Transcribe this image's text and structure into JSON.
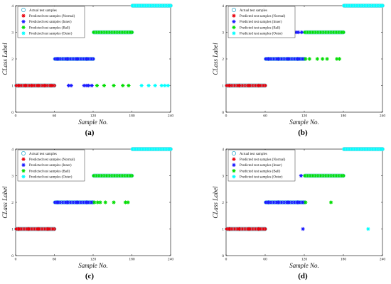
{
  "colors": {
    "actual": "#00e5ee",
    "normal": "#e8000b",
    "inner": "#1a1aff",
    "ball": "#00dd00",
    "outer": "#00ffff",
    "axis": "#000000"
  },
  "legend": [
    {
      "label": "Actual test samples",
      "marker": "circle",
      "color": "#00e5ee"
    },
    {
      "label": "Predicted test samples (Normal)",
      "marker": "star",
      "color": "#e8000b"
    },
    {
      "label": "Predicted test samples (Inner)",
      "marker": "star",
      "color": "#1a1aff"
    },
    {
      "label": "Predicted test samples (Ball)",
      "marker": "star",
      "color": "#00dd00"
    },
    {
      "label": "Predicted test samples (Outer)",
      "marker": "star",
      "color": "#00ffff"
    }
  ],
  "chart_data": [
    {
      "type": "scatter",
      "caption": "(a)",
      "xlabel": "Sample No.",
      "ylabel": "CLass Label",
      "xlim": [
        0,
        240
      ],
      "ylim": [
        0,
        4
      ],
      "xticks": [
        0,
        60,
        120,
        180,
        240
      ],
      "yticks": [
        0,
        1,
        2,
        3,
        4
      ],
      "actual_series": [
        {
          "class": 1,
          "x_range": [
            1,
            60
          ],
          "color": "#e8000b"
        },
        {
          "class": 2,
          "x_range": [
            61,
            120
          ],
          "color": "#1a1aff"
        },
        {
          "class": 3,
          "x_range": [
            121,
            180
          ],
          "color": "#00dd00"
        },
        {
          "class": 4,
          "x_range": [
            181,
            240
          ],
          "color": "#00ffff"
        }
      ],
      "predicted_series": [
        {
          "name": "Normal",
          "color": "#e8000b",
          "points": [
            [
              5,
              1
            ],
            [
              15,
              1
            ],
            [
              25,
              1
            ],
            [
              35,
              1
            ],
            [
              45,
              1
            ],
            [
              55,
              1
            ]
          ]
        },
        {
          "name": "Inner",
          "color": "#1a1aff",
          "points": [
            [
              65,
              2
            ],
            [
              80,
              2
            ],
            [
              95,
              2
            ],
            [
              110,
              2
            ],
            [
              82,
              1
            ],
            [
              86,
              1
            ],
            [
              106,
              1
            ],
            [
              110,
              1
            ],
            [
              113,
              1
            ],
            [
              118,
              1
            ]
          ]
        },
        {
          "name": "Ball",
          "color": "#00dd00",
          "points": [
            [
              126,
              1
            ],
            [
              137,
              1
            ],
            [
              152,
              1
            ],
            [
              166,
              1
            ],
            [
              175,
              1
            ]
          ]
        },
        {
          "name": "Outer",
          "color": "#00ffff",
          "points": [
            [
              195,
              1
            ],
            [
              206,
              1
            ],
            [
              216,
              1
            ],
            [
              226,
              1
            ],
            [
              231,
              1
            ],
            [
              236,
              1
            ]
          ]
        }
      ]
    },
    {
      "type": "scatter",
      "caption": "(b)",
      "xlabel": "Sample No.",
      "ylabel": "CLass Label",
      "xlim": [
        0,
        240
      ],
      "ylim": [
        0,
        4
      ],
      "xticks": [
        0,
        60,
        120,
        180,
        240
      ],
      "yticks": [
        0,
        1,
        2,
        3,
        4
      ],
      "actual_series": [
        {
          "class": 1,
          "x_range": [
            1,
            60
          ],
          "color": "#e8000b"
        },
        {
          "class": 2,
          "x_range": [
            61,
            120
          ],
          "color": "#1a1aff"
        },
        {
          "class": 3,
          "x_range": [
            121,
            180
          ],
          "color": "#00dd00"
        },
        {
          "class": 4,
          "x_range": [
            181,
            240
          ],
          "color": "#00ffff"
        }
      ],
      "predicted_series": [
        {
          "name": "Normal",
          "color": "#e8000b",
          "points": [
            [
              5,
              1
            ],
            [
              20,
              1
            ],
            [
              35,
              1
            ],
            [
              50,
              1
            ]
          ]
        },
        {
          "name": "Inner",
          "color": "#1a1aff",
          "points": [
            [
              68,
              3
            ],
            [
              74,
              3
            ],
            [
              79,
              3
            ],
            [
              83,
              3
            ],
            [
              86,
              3
            ],
            [
              92,
              3
            ],
            [
              99,
              3
            ],
            [
              104,
              3
            ],
            [
              108,
              3
            ],
            [
              111,
              3
            ],
            [
              116,
              3
            ],
            [
              65,
              2
            ],
            [
              80,
              2
            ],
            [
              95,
              2
            ],
            [
              110,
              2
            ]
          ]
        },
        {
          "name": "Ball",
          "color": "#00dd00",
          "points": [
            [
              122,
              2
            ],
            [
              128,
              2
            ],
            [
              140,
              2
            ],
            [
              148,
              2
            ],
            [
              155,
              2
            ],
            [
              170,
              2
            ],
            [
              174,
              2
            ]
          ]
        },
        {
          "name": "Outer",
          "color": "#00ffff",
          "points": []
        }
      ]
    },
    {
      "type": "scatter",
      "caption": "(c)",
      "xlabel": "Sample No.",
      "ylabel": "CLass Label",
      "xlim": [
        0,
        240
      ],
      "ylim": [
        0,
        4
      ],
      "xticks": [
        0,
        60,
        120,
        180,
        240
      ],
      "yticks": [
        0,
        1,
        2,
        3,
        4
      ],
      "actual_series": [
        {
          "class": 1,
          "x_range": [
            1,
            60
          ],
          "color": "#e8000b"
        },
        {
          "class": 2,
          "x_range": [
            61,
            120
          ],
          "color": "#1a1aff"
        },
        {
          "class": 3,
          "x_range": [
            121,
            180
          ],
          "color": "#00dd00"
        },
        {
          "class": 4,
          "x_range": [
            181,
            240
          ],
          "color": "#00ffff"
        }
      ],
      "predicted_series": [
        {
          "name": "Normal",
          "color": "#e8000b",
          "points": [
            [
              5,
              1
            ],
            [
              20,
              1
            ],
            [
              35,
              1
            ],
            [
              50,
              1
            ]
          ]
        },
        {
          "name": "Inner",
          "color": "#1a1aff",
          "points": [
            [
              66,
              3
            ],
            [
              70,
              3
            ],
            [
              65,
              2
            ],
            [
              80,
              2
            ],
            [
              95,
              2
            ],
            [
              110,
              2
            ]
          ]
        },
        {
          "name": "Ball",
          "color": "#00dd00",
          "points": [
            [
              122,
              2
            ],
            [
              127,
              2
            ],
            [
              131,
              2
            ],
            [
              139,
              2
            ],
            [
              152,
              2
            ],
            [
              170,
              2
            ],
            [
              174,
              2
            ]
          ]
        },
        {
          "name": "Outer",
          "color": "#00ffff",
          "points": []
        }
      ]
    },
    {
      "type": "scatter",
      "caption": "(d)",
      "xlabel": "Sample No.",
      "ylabel": "CLass Label",
      "xlim": [
        0,
        240
      ],
      "ylim": [
        0,
        4
      ],
      "xticks": [
        0,
        60,
        120,
        180,
        240
      ],
      "yticks": [
        0,
        1,
        2,
        3,
        4
      ],
      "actual_series": [
        {
          "class": 1,
          "x_range": [
            1,
            60
          ],
          "color": "#e8000b"
        },
        {
          "class": 2,
          "x_range": [
            61,
            120
          ],
          "color": "#1a1aff"
        },
        {
          "class": 3,
          "x_range": [
            121,
            180
          ],
          "color": "#00dd00"
        },
        {
          "class": 4,
          "x_range": [
            181,
            240
          ],
          "color": "#00ffff"
        }
      ],
      "predicted_series": [
        {
          "name": "Normal",
          "color": "#e8000b",
          "points": [
            [
              5,
              1
            ],
            [
              20,
              1
            ],
            [
              35,
              1
            ],
            [
              50,
              1
            ]
          ]
        },
        {
          "name": "Inner",
          "color": "#1a1aff",
          "points": [
            [
              90,
              3
            ],
            [
              115,
              3
            ],
            [
              118,
              1
            ],
            [
              65,
              2
            ],
            [
              80,
              2
            ],
            [
              95,
              2
            ],
            [
              110,
              2
            ]
          ]
        },
        {
          "name": "Ball",
          "color": "#00dd00",
          "points": [
            [
              122,
              2
            ],
            [
              161,
              2
            ]
          ]
        },
        {
          "name": "Outer",
          "color": "#00ffff",
          "points": [
            [
              218,
              1
            ]
          ]
        }
      ]
    }
  ]
}
